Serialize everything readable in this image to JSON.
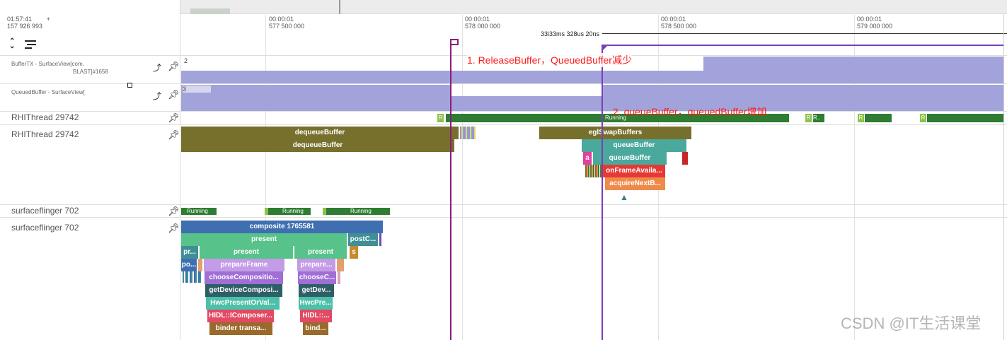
{
  "header": {
    "left_time": "01:57:41",
    "left_plus": "+",
    "left_ns": "157 926 993",
    "ticks": [
      {
        "t": "00:00:01",
        "ns": "577 500 000"
      },
      {
        "t": "00:00:01",
        "ns": "578 000 000"
      },
      {
        "t": "00:00:01",
        "ns": "578 500 000"
      },
      {
        "t": "00:00:01",
        "ns": "579 000 000"
      }
    ],
    "span_label": "33i33ms 328us 20ns"
  },
  "toolbar": {
    "collapse_icon": "collapse-expand-icon",
    "menu_icon": "menu-lines-icon"
  },
  "tracks": {
    "buffertx": {
      "label1": "BufferTX - SurfaceView[com.",
      "label2": "BLAST]#1658",
      "value_a": "2"
    },
    "queuedbuffer": {
      "label1": "QueuedBuffer - SurfaceView[",
      "value_a": "3"
    },
    "rhi_state": {
      "label": "RHIThread 29742",
      "r": "R",
      "running": "Running",
      "r2": "R",
      "r3": "R..",
      "r4": "R",
      "r5": "R"
    },
    "rhi_slices": {
      "label": "RHIThread 29742"
    },
    "sf_state": {
      "label": "surfaceflinger 702",
      "running": "Running"
    },
    "sf_slices": {
      "label": "surfaceflinger 702"
    }
  },
  "rhi_slices": {
    "deq1": "dequeueBuffer",
    "deq2": "dequeueBuffer",
    "egl": "eglSwapBuffers",
    "qb1": "queueBuffer",
    "qb2": "queueBuffer",
    "a": "a",
    "onframe": "onFrameAvaila...",
    "acquire": "acquireNextB..."
  },
  "sf_slices": {
    "composite": "composite 1765581",
    "present": "present",
    "postc": "postC...",
    "pr": "pr...",
    "present2": "present",
    "present3": "present",
    "s": "s",
    "po": "po...",
    "prepare": "prepareFrame",
    "prepare2": "prepare...",
    "choose": "chooseCompositio...",
    "choose2": "chooseC...",
    "getdev": "getDeviceComposi...",
    "getdev2": "getDev...",
    "hwc": "HwcPresentOrVal...",
    "hwc2": "HwcPre...",
    "hidl": "HIDL::IComposer...",
    "hidl2": "HIDL::...",
    "binder": "binder transa...",
    "binder2": "bind..."
  },
  "annotations": {
    "a1": "1.  ReleaseBuffer，QueuedBuffer减少",
    "a2": "2. queueBuffer，queuedBuffer增加"
  },
  "watermark": "CSDN @IT生活课堂",
  "colors": {
    "counter": "#a3a3db",
    "running": "#2e7d32",
    "olive": "#77702d",
    "teal": "#4aa89c",
    "red": "#e53935",
    "orange": "#f08a4b",
    "blue": "#3f6fb0",
    "green": "#57c28a",
    "purple": "#9f6fd6",
    "lilac": "#c39be6",
    "darkteal": "#2f5f66",
    "hwc": "#4cc0a8",
    "pink": "#e24a63",
    "brown": "#9a6a2c",
    "flag": "#8a1c7c",
    "marker": "#7a3fb8"
  }
}
